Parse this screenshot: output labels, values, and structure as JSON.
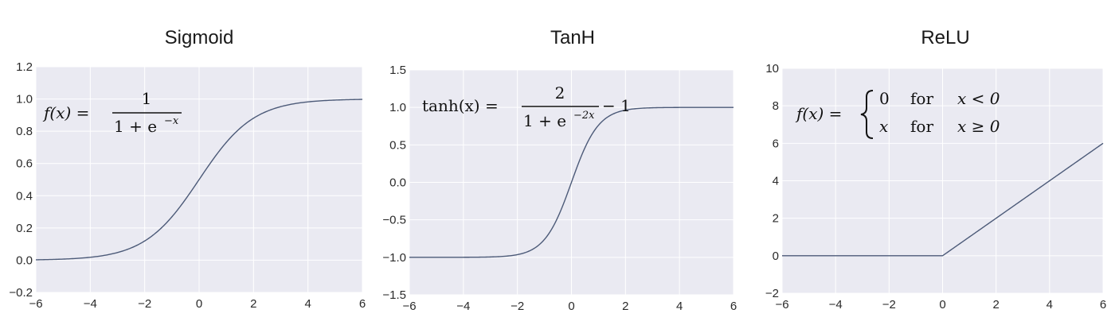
{
  "chart_data": [
    {
      "type": "line",
      "title": "Sigmoid",
      "xlabel": "",
      "ylabel": "",
      "xlim": [
        -6,
        6
      ],
      "ylim": [
        -0.2,
        1.2
      ],
      "xticks": [
        -6,
        -4,
        -2,
        0,
        2,
        4,
        6
      ],
      "xtick_labels": [
        "−6",
        "−4",
        "−2",
        "0",
        "2",
        "4",
        "6"
      ],
      "yticks": [
        -0.2,
        0.0,
        0.2,
        0.4,
        0.6,
        0.8,
        1.0,
        1.2
      ],
      "ytick_labels": [
        "−0.2",
        "0.0",
        "0.2",
        "0.4",
        "0.6",
        "0.8",
        "1.0",
        "1.2"
      ],
      "grid": true,
      "function": "sigmoid",
      "formula": {
        "lhs": "f(x) =",
        "numerator": "1",
        "denominator": "1 + e",
        "exponent": "−x"
      }
    },
    {
      "type": "line",
      "title": "TanH",
      "xlabel": "",
      "ylabel": "",
      "xlim": [
        -6,
        6
      ],
      "ylim": [
        -1.5,
        1.5
      ],
      "xticks": [
        -6,
        -4,
        -2,
        0,
        2,
        4,
        6
      ],
      "xtick_labels": [
        "−6",
        "−4",
        "−2",
        "0",
        "2",
        "4",
        "6"
      ],
      "yticks": [
        -1.5,
        -1.0,
        -0.5,
        0.0,
        0.5,
        1.0,
        1.5
      ],
      "ytick_labels": [
        "−1.5",
        "−1.0",
        "−0.5",
        "0.0",
        "0.5",
        "1.0",
        "1.5"
      ],
      "grid": true,
      "function": "tanh",
      "formula": {
        "lhs": "tanh(x) =",
        "numerator": "2",
        "denominator": "1 + e",
        "exponent": "−2x",
        "suffix": "− 1"
      }
    },
    {
      "type": "line",
      "title": "ReLU",
      "xlabel": "",
      "ylabel": "",
      "xlim": [
        -6,
        6
      ],
      "ylim": [
        -2,
        10
      ],
      "xticks": [
        -6,
        -4,
        -2,
        0,
        2,
        4,
        6
      ],
      "xtick_labels": [
        "−6",
        "−4",
        "−2",
        "0",
        "2",
        "4",
        "6"
      ],
      "yticks": [
        -2,
        0,
        2,
        4,
        6,
        8,
        10
      ],
      "ytick_labels": [
        "−2",
        "0",
        "2",
        "4",
        "6",
        "8",
        "10"
      ],
      "grid": true,
      "function": "relu",
      "formula": {
        "lhs": "f(x) =",
        "case1_value": "0",
        "case1_word": "for",
        "case1_cond": "x < 0",
        "case2_value": "x",
        "case2_word": "for",
        "case2_cond": "x ≥ 0"
      }
    }
  ],
  "colors": {
    "plot_bg": "#eaeaf2",
    "grid": "#ffffff",
    "line": "#4c5a78"
  }
}
